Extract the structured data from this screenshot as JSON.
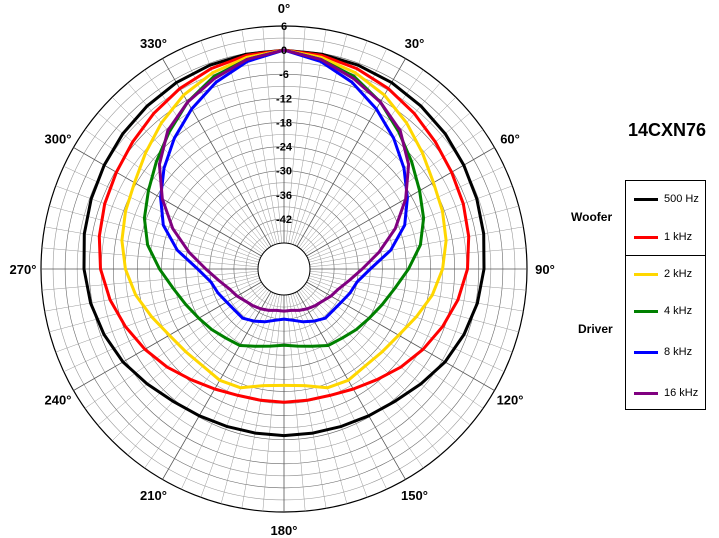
{
  "model": "14CXN76",
  "legend": {
    "woofer_label": "Woofer",
    "driver_label": "Driver"
  },
  "chart_data": {
    "type": "polar-line",
    "title": "14CXN76",
    "radial_ticks": [
      "6",
      "0",
      "-6",
      "-12",
      "-18",
      "-24",
      "-30",
      "-36",
      "-42"
    ],
    "rlim": [
      -48,
      6
    ],
    "angle_labels": [
      "0°",
      "30°",
      "60°",
      "90°",
      "120°",
      "150°",
      "180°",
      "210°",
      "240°",
      "270°",
      "300°",
      "330°"
    ],
    "grid": true,
    "legend_position": "right",
    "angles": [
      0,
      10,
      20,
      30,
      40,
      50,
      60,
      70,
      80,
      90,
      100,
      110,
      120,
      130,
      140,
      150,
      160,
      170,
      180,
      190,
      200,
      210,
      220,
      230,
      240,
      250,
      260,
      270,
      280,
      290,
      300,
      310,
      320,
      330,
      340,
      350
    ],
    "series": [
      {
        "name": "500 Hz",
        "group": "Woofer",
        "color": "#000000",
        "values": [
          0,
          -0.2,
          -0.5,
          -0.9,
          -1.5,
          -2.1,
          -2.8,
          -3.4,
          -4.0,
          -4.7,
          -5.6,
          -6.8,
          -8.2,
          -10.0,
          -11.5,
          -12.3,
          -12.8,
          -13.0,
          -13.0,
          -13.0,
          -12.8,
          -12.3,
          -11.5,
          -10.0,
          -8.2,
          -6.8,
          -5.6,
          -4.7,
          -4.0,
          -3.4,
          -2.8,
          -2.1,
          -1.5,
          -0.9,
          -0.5,
          -0.2
        ]
      },
      {
        "name": "1 kHz",
        "group": "Woofer",
        "color": "#ff0000",
        "values": [
          0,
          -0.5,
          -1.4,
          -2.6,
          -4.0,
          -5.3,
          -6.3,
          -7.0,
          -7.8,
          -8.8,
          -10.5,
          -12.5,
          -14.5,
          -16.5,
          -18.5,
          -20.0,
          -21.0,
          -21.3,
          -21.3,
          -21.3,
          -21.0,
          -20.0,
          -18.5,
          -16.5,
          -14.5,
          -12.5,
          -10.5,
          -8.8,
          -7.8,
          -7.0,
          -6.3,
          -5.3,
          -4.0,
          -2.6,
          -1.4,
          -0.5
        ]
      },
      {
        "name": "2 kHz",
        "group": "Driver",
        "color": "#ffd700",
        "values": [
          0,
          -1.0,
          -2.5,
          -4.5,
          -7.0,
          -9.5,
          -11.5,
          -12.5,
          -13.5,
          -15.0,
          -17.0,
          -19.5,
          -21.5,
          -22.5,
          -23.0,
          -22.5,
          -23.0,
          -25.0,
          -25.5,
          -25.0,
          -23.0,
          -22.5,
          -23.0,
          -22.5,
          -21.5,
          -19.5,
          -17.0,
          -15.0,
          -13.5,
          -12.5,
          -11.5,
          -9.5,
          -7.0,
          -4.5,
          -2.5,
          -1.0
        ]
      },
      {
        "name": "4 kHz",
        "group": "Driver",
        "color": "#008000",
        "values": [
          0,
          -1.5,
          -3.5,
          -6.5,
          -10.0,
          -13.0,
          -15.5,
          -17.5,
          -20.0,
          -23.5,
          -26.5,
          -28.5,
          -30.0,
          -31.0,
          -32.0,
          -32.5,
          -34.0,
          -35.0,
          -35.5,
          -35.0,
          -34.0,
          -32.5,
          -32.0,
          -31.0,
          -30.0,
          -28.5,
          -26.5,
          -23.5,
          -20.0,
          -17.5,
          -15.5,
          -13.0,
          -10.0,
          -6.5,
          -3.5,
          -1.5
        ]
      },
      {
        "name": "8 kHz",
        "group": "Driver",
        "color": "#0000ff",
        "values": [
          0,
          -2.0,
          -5.0,
          -8.5,
          -12.0,
          -15.5,
          -19.0,
          -22.5,
          -27.5,
          -33.0,
          -36.0,
          -37.0,
          -38.0,
          -38.5,
          -38.5,
          -39.5,
          -40.5,
          -41.5,
          -42.0,
          -41.5,
          -40.5,
          -39.5,
          -38.5,
          -38.5,
          -38.0,
          -37.0,
          -36.0,
          -33.0,
          -27.5,
          -22.5,
          -19.0,
          -15.5,
          -12.0,
          -8.5,
          -5.0,
          -2.0
        ]
      },
      {
        "name": "16 kHz",
        "group": "Driver",
        "color": "#800080",
        "values": [
          0,
          -1.5,
          -4.0,
          -6.5,
          -9.5,
          -14.0,
          -19.5,
          -25.0,
          -30.5,
          -35.0,
          -38.0,
          -40.0,
          -41.0,
          -42.0,
          -42.5,
          -43.0,
          -43.5,
          -44.0,
          -44.0,
          -44.0,
          -43.5,
          -43.0,
          -42.5,
          -42.0,
          -41.0,
          -40.0,
          -38.0,
          -35.0,
          -30.5,
          -25.0,
          -19.5,
          -14.0,
          -9.5,
          -6.5,
          -4.0,
          -1.5
        ]
      }
    ]
  }
}
